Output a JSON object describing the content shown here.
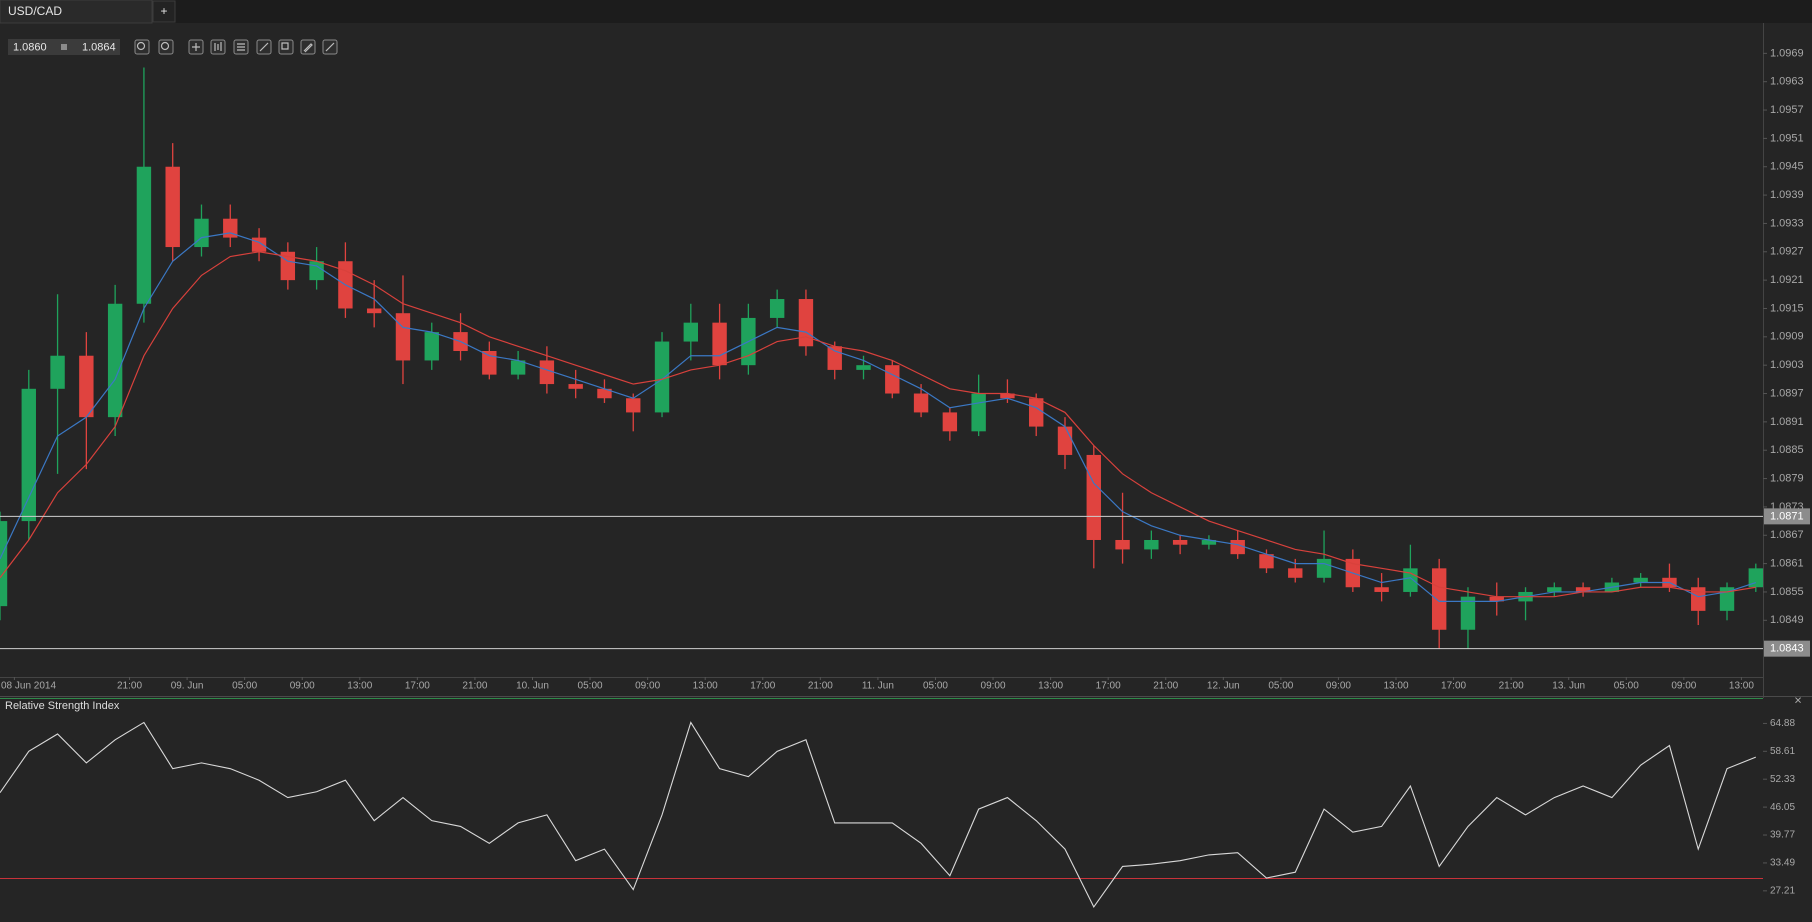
{
  "tab": {
    "title": "USD/CAD",
    "add": "+"
  },
  "toolbar": {
    "bid": "1.0860",
    "ask": "1.0864"
  },
  "chart_data": [
    {
      "type": "candlestick",
      "x": [
        "2014-06-08 12:00",
        "2014-06-08 14:00",
        "2014-06-08 16:00",
        "2014-06-08 18:00",
        "2014-06-08 20:00",
        "2014-06-08 22:00",
        "2014-06-09 00:00",
        "2014-06-09 02:00",
        "2014-06-09 04:00",
        "2014-06-09 06:00",
        "2014-06-09 08:00",
        "2014-06-09 10:00",
        "2014-06-09 12:00",
        "2014-06-09 14:00",
        "2014-06-09 16:00",
        "2014-06-09 18:00",
        "2014-06-09 20:00",
        "2014-06-09 22:00",
        "2014-06-10 00:00",
        "2014-06-10 02:00",
        "2014-06-10 04:00",
        "2014-06-10 06:00",
        "2014-06-10 08:00",
        "2014-06-10 10:00",
        "2014-06-10 12:00",
        "2014-06-10 14:00",
        "2014-06-10 16:00",
        "2014-06-10 18:00",
        "2014-06-10 20:00",
        "2014-06-10 22:00",
        "2014-06-11 00:00",
        "2014-06-11 02:00",
        "2014-06-11 04:00",
        "2014-06-11 06:00",
        "2014-06-11 08:00",
        "2014-06-11 10:00",
        "2014-06-11 12:00",
        "2014-06-11 14:00",
        "2014-06-11 16:00",
        "2014-06-11 18:00",
        "2014-06-11 20:00",
        "2014-06-11 22:00",
        "2014-06-12 00:00",
        "2014-06-12 02:00",
        "2014-06-12 04:00",
        "2014-06-12 06:00",
        "2014-06-12 08:00",
        "2014-06-12 10:00",
        "2014-06-12 12:00",
        "2014-06-12 14:00",
        "2014-06-12 16:00",
        "2014-06-12 18:00",
        "2014-06-12 20:00",
        "2014-06-12 22:00",
        "2014-06-13 00:00",
        "2014-06-13 02:00",
        "2014-06-13 04:00",
        "2014-06-13 06:00",
        "2014-06-13 08:00",
        "2014-06-13 10:00",
        "2014-06-13 12:00",
        "2014-06-13 14:00"
      ],
      "open": [
        1.0852,
        1.087,
        1.0898,
        1.0905,
        1.0892,
        1.0916,
        1.0945,
        1.0928,
        1.0934,
        1.093,
        1.0927,
        1.0921,
        1.0925,
        1.0915,
        1.0914,
        1.0904,
        1.091,
        1.0906,
        1.0901,
        1.0904,
        1.0899,
        1.0898,
        1.0896,
        1.0893,
        1.0908,
        1.0912,
        1.0903,
        1.0913,
        1.0917,
        1.0907,
        1.0902,
        1.0903,
        1.0897,
        1.0893,
        1.0889,
        1.0897,
        1.0896,
        1.089,
        1.0884,
        1.0866,
        1.0864,
        1.0866,
        1.0865,
        1.0866,
        1.0863,
        1.086,
        1.0858,
        1.0862,
        1.0856,
        1.0855,
        1.086,
        1.0847,
        1.0854,
        1.0853,
        1.0855,
        1.0856,
        1.0855,
        1.0857,
        1.0858,
        1.0856,
        1.0851,
        1.0856
      ],
      "high": [
        1.0872,
        1.0902,
        1.0918,
        1.091,
        1.092,
        1.0966,
        1.095,
        1.0937,
        1.0937,
        1.0932,
        1.0929,
        1.0928,
        1.0929,
        1.0921,
        1.0922,
        1.0912,
        1.0914,
        1.0908,
        1.0906,
        1.0907,
        1.0902,
        1.09,
        1.0897,
        1.091,
        1.0916,
        1.0916,
        1.0916,
        1.0919,
        1.0919,
        1.0908,
        1.0905,
        1.0904,
        1.0899,
        1.0894,
        1.0901,
        1.09,
        1.0897,
        1.0892,
        1.0886,
        1.0876,
        1.0868,
        1.0867,
        1.0867,
        1.0868,
        1.0864,
        1.0862,
        1.0868,
        1.0864,
        1.0859,
        1.0865,
        1.0862,
        1.0856,
        1.0857,
        1.0856,
        1.0857,
        1.0857,
        1.0858,
        1.0859,
        1.0861,
        1.0858,
        1.0857,
        1.0861
      ],
      "low": [
        1.0849,
        1.0866,
        1.088,
        1.0881,
        1.0888,
        1.0912,
        1.0925,
        1.0926,
        1.0928,
        1.0925,
        1.0919,
        1.0919,
        1.0913,
        1.0911,
        1.0899,
        1.0902,
        1.0904,
        1.09,
        1.09,
        1.0897,
        1.0896,
        1.0895,
        1.0889,
        1.0892,
        1.0904,
        1.09,
        1.0901,
        1.0911,
        1.0905,
        1.09,
        1.09,
        1.0896,
        1.0892,
        1.0887,
        1.0888,
        1.0895,
        1.0888,
        1.0881,
        1.086,
        1.0861,
        1.0862,
        1.0863,
        1.0864,
        1.0862,
        1.0859,
        1.0857,
        1.0857,
        1.0855,
        1.0853,
        1.0854,
        1.0843,
        1.0843,
        1.085,
        1.0849,
        1.0854,
        1.0854,
        1.0855,
        1.0856,
        1.0855,
        1.0848,
        1.0849,
        1.0855
      ],
      "close": [
        1.087,
        1.0898,
        1.0905,
        1.0892,
        1.0916,
        1.0945,
        1.0928,
        1.0934,
        1.093,
        1.0927,
        1.0921,
        1.0925,
        1.0915,
        1.0914,
        1.0904,
        1.091,
        1.0906,
        1.0901,
        1.0904,
        1.0899,
        1.0898,
        1.0896,
        1.0893,
        1.0908,
        1.0912,
        1.0903,
        1.0913,
        1.0917,
        1.0907,
        1.0902,
        1.0903,
        1.0897,
        1.0893,
        1.0889,
        1.0897,
        1.0896,
        1.089,
        1.0884,
        1.0866,
        1.0864,
        1.0866,
        1.0865,
        1.0866,
        1.0863,
        1.086,
        1.0858,
        1.0862,
        1.0856,
        1.0855,
        1.086,
        1.0847,
        1.0854,
        1.0853,
        1.0855,
        1.0856,
        1.0855,
        1.0857,
        1.0858,
        1.0856,
        1.0851,
        1.0856,
        1.086
      ],
      "up_color": "#1fa35c",
      "down_color": "#e0433f",
      "overlays": [
        {
          "color": "#3b78c4",
          "values": [
            1.0862,
            1.0875,
            1.0888,
            1.0892,
            1.09,
            1.0915,
            1.0925,
            1.093,
            1.0931,
            1.0929,
            1.0925,
            1.0924,
            1.092,
            1.0917,
            1.0911,
            1.091,
            1.0908,
            1.0905,
            1.0904,
            1.0902,
            1.09,
            1.0898,
            1.0896,
            1.09,
            1.0905,
            1.0905,
            1.0908,
            1.0911,
            1.091,
            1.0906,
            1.0904,
            1.0901,
            1.0898,
            1.0894,
            1.0895,
            1.0896,
            1.0894,
            1.089,
            1.0878,
            1.0872,
            1.0869,
            1.0867,
            1.0866,
            1.0865,
            1.0863,
            1.0861,
            1.0861,
            1.0859,
            1.0857,
            1.0858,
            1.0853,
            1.0853,
            1.0853,
            1.0854,
            1.0855,
            1.0855,
            1.0856,
            1.0857,
            1.0857,
            1.0854,
            1.0855,
            1.0857
          ]
        },
        {
          "color": "#d8413c",
          "values": [
            1.0858,
            1.0866,
            1.0876,
            1.0882,
            1.089,
            1.0905,
            1.0915,
            1.0922,
            1.0926,
            1.0927,
            1.0926,
            1.0925,
            1.0923,
            1.092,
            1.0916,
            1.0914,
            1.0912,
            1.0909,
            1.0907,
            1.0905,
            1.0903,
            1.0901,
            1.0899,
            1.09,
            1.0902,
            1.0903,
            1.0905,
            1.0908,
            1.0909,
            1.0907,
            1.0906,
            1.0904,
            1.0901,
            1.0898,
            1.0897,
            1.0897,
            1.0896,
            1.0893,
            1.0886,
            1.088,
            1.0876,
            1.0873,
            1.087,
            1.0868,
            1.0866,
            1.0864,
            1.0863,
            1.0861,
            1.086,
            1.0859,
            1.0856,
            1.0855,
            1.0854,
            1.0854,
            1.0854,
            1.0855,
            1.0855,
            1.0856,
            1.0856,
            1.0855,
            1.0855,
            1.0856
          ]
        }
      ],
      "hlines": [
        1.0871,
        1.0843
      ],
      "xlim": [
        "2014-06-08 12:00",
        "2014-06-13 14:30"
      ],
      "xticks": [
        {
          "value": "2014-06-08 13:00",
          "label": "08 Jun 2014"
        },
        {
          "value": "2014-06-08 21:00",
          "label": "21:00"
        },
        {
          "value": "2014-06-09 01:00",
          "label": "09. Jun"
        },
        {
          "value": "2014-06-09 05:00",
          "label": "05:00"
        },
        {
          "value": "2014-06-09 09:00",
          "label": "09:00"
        },
        {
          "value": "2014-06-09 13:00",
          "label": "13:00"
        },
        {
          "value": "2014-06-09 17:00",
          "label": "17:00"
        },
        {
          "value": "2014-06-09 21:00",
          "label": "21:00"
        },
        {
          "value": "2014-06-10 01:00",
          "label": "10. Jun"
        },
        {
          "value": "2014-06-10 05:00",
          "label": "05:00"
        },
        {
          "value": "2014-06-10 09:00",
          "label": "09:00"
        },
        {
          "value": "2014-06-10 13:00",
          "label": "13:00"
        },
        {
          "value": "2014-06-10 17:00",
          "label": "17:00"
        },
        {
          "value": "2014-06-10 21:00",
          "label": "21:00"
        },
        {
          "value": "2014-06-11 01:00",
          "label": "11. Jun"
        },
        {
          "value": "2014-06-11 05:00",
          "label": "05:00"
        },
        {
          "value": "2014-06-11 09:00",
          "label": "09:00"
        },
        {
          "value": "2014-06-11 13:00",
          "label": "13:00"
        },
        {
          "value": "2014-06-11 17:00",
          "label": "17:00"
        },
        {
          "value": "2014-06-11 21:00",
          "label": "21:00"
        },
        {
          "value": "2014-06-12 01:00",
          "label": "12. Jun"
        },
        {
          "value": "2014-06-12 05:00",
          "label": "05:00"
        },
        {
          "value": "2014-06-12 09:00",
          "label": "09:00"
        },
        {
          "value": "2014-06-12 13:00",
          "label": "13:00"
        },
        {
          "value": "2014-06-12 17:00",
          "label": "17:00"
        },
        {
          "value": "2014-06-12 21:00",
          "label": "21:00"
        },
        {
          "value": "2014-06-13 01:00",
          "label": "13. Jun"
        },
        {
          "value": "2014-06-13 05:00",
          "label": "05:00"
        },
        {
          "value": "2014-06-13 09:00",
          "label": "09:00"
        },
        {
          "value": "2014-06-13 13:00",
          "label": "13:00"
        }
      ],
      "ylim": [
        1.0837,
        1.0975
      ],
      "yticks": [
        1.0969,
        1.0963,
        1.0957,
        1.0951,
        1.0945,
        1.0939,
        1.0933,
        1.0927,
        1.0921,
        1.0915,
        1.0909,
        1.0903,
        1.0897,
        1.0891,
        1.0885,
        1.0879,
        1.0873,
        1.0867,
        1.0861,
        1.0855,
        1.0849
      ]
    },
    {
      "type": "line",
      "title": "Relative Strength Index",
      "x": [
        "2014-06-08 12:00",
        "2014-06-08 14:00",
        "2014-06-08 16:00",
        "2014-06-08 18:00",
        "2014-06-08 20:00",
        "2014-06-08 22:00",
        "2014-06-09 00:00",
        "2014-06-09 02:00",
        "2014-06-09 04:00",
        "2014-06-09 06:00",
        "2014-06-09 08:00",
        "2014-06-09 10:00",
        "2014-06-09 12:00",
        "2014-06-09 14:00",
        "2014-06-09 16:00",
        "2014-06-09 18:00",
        "2014-06-09 20:00",
        "2014-06-09 22:00",
        "2014-06-10 00:00",
        "2014-06-10 02:00",
        "2014-06-10 04:00",
        "2014-06-10 06:00",
        "2014-06-10 08:00",
        "2014-06-10 10:00",
        "2014-06-10 12:00",
        "2014-06-10 14:00",
        "2014-06-10 16:00",
        "2014-06-10 18:00",
        "2014-06-10 20:00",
        "2014-06-10 22:00",
        "2014-06-11 00:00",
        "2014-06-11 02:00",
        "2014-06-11 04:00",
        "2014-06-11 06:00",
        "2014-06-11 08:00",
        "2014-06-11 10:00",
        "2014-06-11 12:00",
        "2014-06-11 14:00",
        "2014-06-11 16:00",
        "2014-06-11 18:00",
        "2014-06-11 20:00",
        "2014-06-11 22:00",
        "2014-06-12 00:00",
        "2014-06-12 02:00",
        "2014-06-12 04:00",
        "2014-06-12 06:00",
        "2014-06-12 08:00",
        "2014-06-12 10:00",
        "2014-06-12 12:00",
        "2014-06-12 14:00",
        "2014-06-12 16:00",
        "2014-06-12 18:00",
        "2014-06-12 20:00",
        "2014-06-12 22:00",
        "2014-06-13 00:00",
        "2014-06-13 02:00",
        "2014-06-13 04:00",
        "2014-06-13 06:00",
        "2014-06-13 08:00",
        "2014-06-13 10:00",
        "2014-06-13 12:00",
        "2014-06-13 14:00"
      ],
      "values": [
        49.3,
        58.6,
        62.5,
        56,
        61.2,
        65.1,
        54.7,
        56,
        54.7,
        52.1,
        48.2,
        49.5,
        52.1,
        43,
        48.2,
        43,
        41.7,
        37.9,
        42.5,
        44.3,
        34,
        36.6,
        27.5,
        44.3,
        65.1,
        54.7,
        52.9,
        58.6,
        61.2,
        42.5,
        42.5,
        42.5,
        37.9,
        30.6,
        45.6,
        48.2,
        43,
        36.6,
        23.6,
        32.7,
        33.2,
        34,
        35.3,
        35.8,
        30.1,
        31.4,
        45.6,
        40.4,
        41.7,
        50.8,
        32.7,
        41.7,
        48.2,
        44.3,
        48.2,
        50.8,
        48.2,
        55.5,
        59.9,
        36.6,
        54.7,
        57.3
      ],
      "color": "#d9d9d9",
      "level": 30,
      "level_color": "#c8323a",
      "xlim": [
        "2014-06-08 12:00",
        "2014-06-13 14:30"
      ],
      "ylim": [
        20.2,
        70.6
      ],
      "yticks": [
        64.88,
        58.61,
        52.33,
        46.05,
        39.77,
        33.49,
        27.21
      ]
    }
  ]
}
